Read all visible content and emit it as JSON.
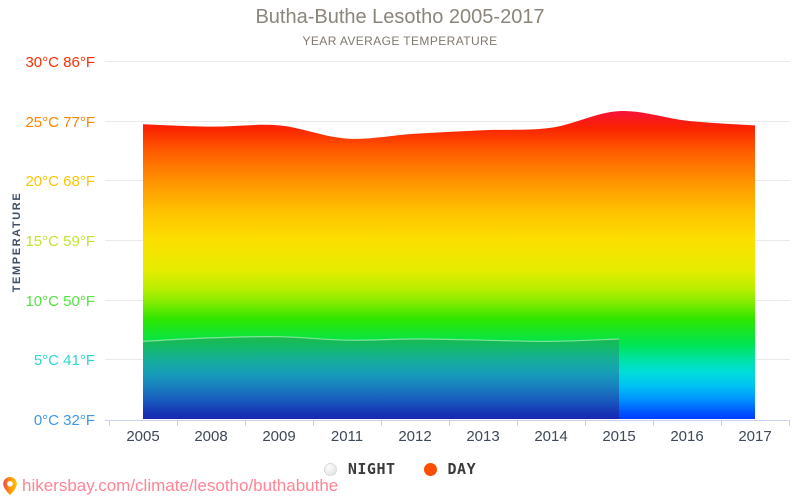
{
  "title": "Butha-Buthe Lesotho 2005-2017",
  "subtitle": "YEAR AVERAGE TEMPERATURE",
  "y_axis": {
    "title": "TEMPERATURE",
    "ticks": [
      {
        "temp": 30,
        "c": "30°C",
        "f": "86°F",
        "color": "#ff2f00"
      },
      {
        "temp": 25,
        "c": "25°C",
        "f": "77°F",
        "color": "#ff8400"
      },
      {
        "temp": 20,
        "c": "20°C",
        "f": "68°F",
        "color": "#ffc400"
      },
      {
        "temp": 15,
        "c": "15°C",
        "f": "59°F",
        "color": "#bfe52e"
      },
      {
        "temp": 10,
        "c": "10°C",
        "f": "50°F",
        "color": "#55e243"
      },
      {
        "temp": 5,
        "c": "5°C",
        "f": "41°F",
        "color": "#2bd8cd"
      },
      {
        "temp": 0,
        "c": "0°C",
        "f": "32°F",
        "color": "#3e97e8"
      }
    ]
  },
  "x_axis": {
    "years": [
      "2005",
      "2008",
      "2009",
      "2011",
      "2012",
      "2013",
      "2014",
      "2015",
      "2016",
      "2017"
    ]
  },
  "legend": [
    {
      "label": "NIGHT",
      "dot_color": "#ececec",
      "style": "stippled"
    },
    {
      "label": "DAY",
      "dot_color": "#fa4e00",
      "style": "solid"
    }
  ],
  "footer": {
    "url": "hikersbay.com/climate/lesotho/buthabuthe"
  },
  "chart_data": {
    "type": "area",
    "title": "Butha-Buthe Lesotho 2005-2017",
    "subtitle": "YEAR AVERAGE TEMPERATURE",
    "ylabel": "TEMPERATURE",
    "ylim": [
      0,
      30
    ],
    "grid": true,
    "legend_position": "bottom",
    "x": [
      2005,
      2008,
      2009,
      2011,
      2012,
      2013,
      2014,
      2015,
      2016,
      2017
    ],
    "series": [
      {
        "name": "DAY",
        "unit": "°C",
        "values": [
          24.7,
          24.5,
          24.6,
          23.5,
          23.9,
          24.2,
          24.4,
          25.8,
          25.0,
          24.6
        ]
      },
      {
        "name": "NIGHT",
        "unit": "°C",
        "values": [
          6.5,
          6.8,
          6.9,
          6.6,
          6.7,
          6.6,
          6.5,
          6.7,
          null,
          null
        ]
      }
    ],
    "fill": "vertical-rainbow-gradient",
    "gradient_stops": [
      {
        "o": 0.0,
        "c": "#d6006b"
      },
      {
        "o": 0.13,
        "c": "#f50f45"
      },
      {
        "o": 0.185,
        "c": "#fa2100"
      },
      {
        "o": 0.25,
        "c": "#ff5a00"
      },
      {
        "o": 0.333,
        "c": "#ff9100"
      },
      {
        "o": 0.417,
        "c": "#ffc000"
      },
      {
        "o": 0.5,
        "c": "#fcdf00"
      },
      {
        "o": 0.583,
        "c": "#e5ec00"
      },
      {
        "o": 0.633,
        "c": "#bdee00"
      },
      {
        "o": 0.667,
        "c": "#8fec00"
      },
      {
        "o": 0.723,
        "c": "#2ce600"
      },
      {
        "o": 0.793,
        "c": "#00e455"
      },
      {
        "o": 0.833,
        "c": "#00e2a2"
      },
      {
        "o": 0.868,
        "c": "#00ded8"
      },
      {
        "o": 0.905,
        "c": "#00c4f2"
      },
      {
        "o": 0.948,
        "c": "#0090ff"
      },
      {
        "o": 0.98,
        "c": "#0056ff"
      },
      {
        "o": 1.0,
        "c": "#003cff"
      }
    ],
    "night_overlay_stops": [
      {
        "o": 0.0,
        "c": "rgba(100,100,130,0.16)"
      },
      {
        "o": 0.8,
        "c": "rgba(72,72,128,0.27)"
      },
      {
        "o": 1.0,
        "c": "rgba(38,26,120,0.58)"
      }
    ]
  }
}
